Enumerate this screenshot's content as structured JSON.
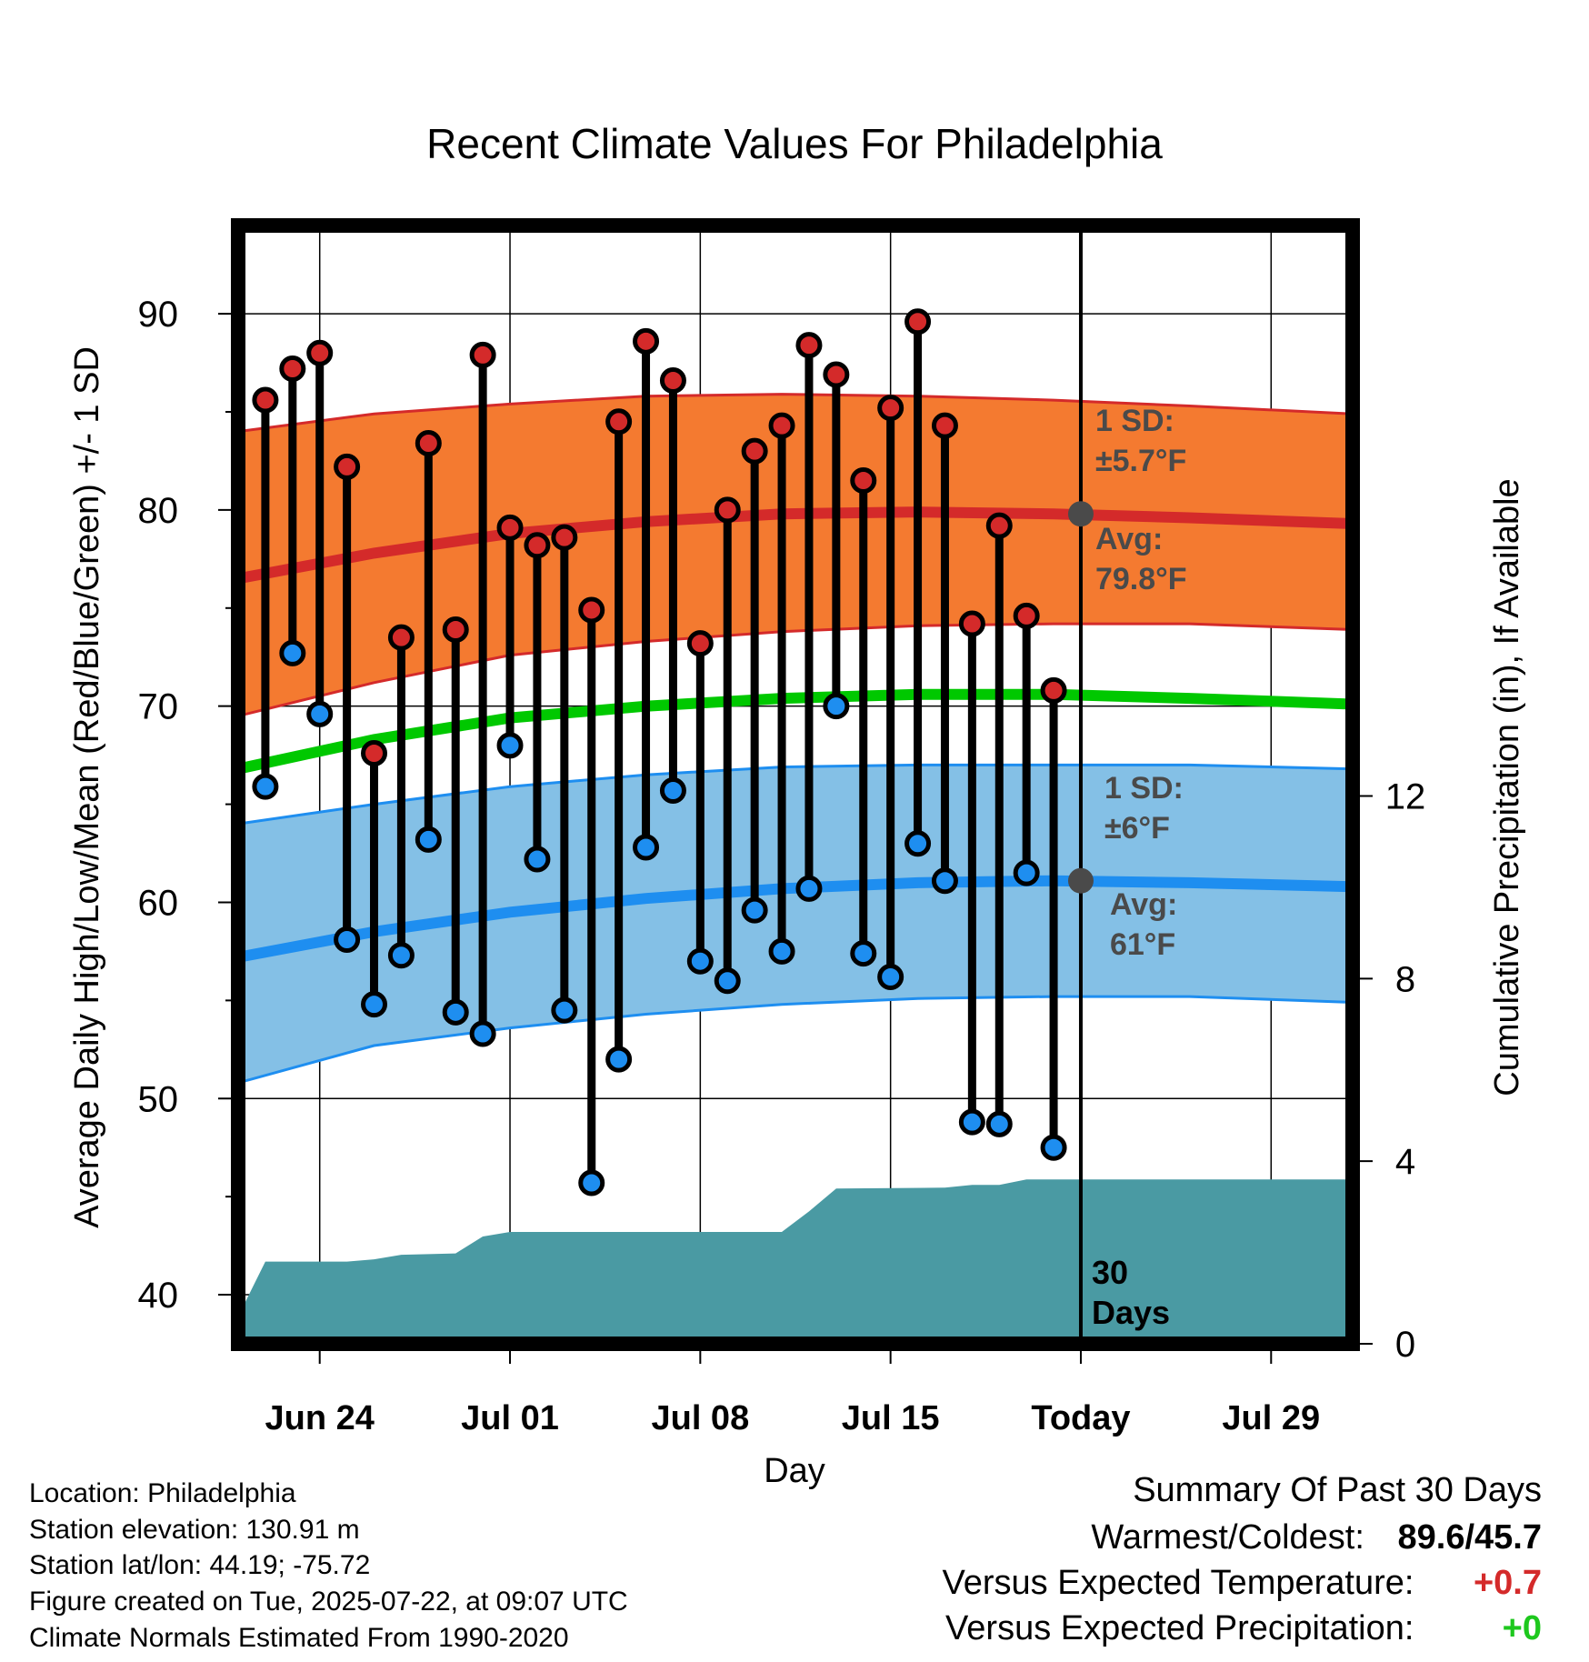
{
  "chart_data": {
    "type": "line",
    "title": "Recent Climate Values For Philadelphia",
    "xlabel": "Day",
    "ylabel": "Average Daily High/Low/Mean (Red/Blue/Green) +/- 1 SD",
    "y2label": "Cumulative Precipitation (in), If Available",
    "ylim": [
      37.5,
      94.5
    ],
    "y_ticks": [
      40,
      50,
      60,
      70,
      80,
      90
    ],
    "y2_ticks": [
      0,
      4,
      8,
      12
    ],
    "y2lim": [
      0,
      24.5
    ],
    "xlim": [
      "2025-06-21",
      "2025-08-01"
    ],
    "x_ticks": [
      {
        "date": "2025-06-24",
        "label": "Jun 24"
      },
      {
        "date": "2025-07-01",
        "label": "Jul 01"
      },
      {
        "date": "2025-07-08",
        "label": "Jul 08"
      },
      {
        "date": "2025-07-15",
        "label": "Jul 15"
      },
      {
        "date": "2025-07-22",
        "label": "Today"
      },
      {
        "date": "2025-07-29",
        "label": "Jul 29"
      }
    ],
    "today": "2025-07-22",
    "grid": true,
    "observations": {
      "dates": [
        "2025-06-22",
        "2025-06-23",
        "2025-06-24",
        "2025-06-25",
        "2025-06-26",
        "2025-06-27",
        "2025-06-28",
        "2025-06-29",
        "2025-06-30",
        "2025-07-01",
        "2025-07-02",
        "2025-07-03",
        "2025-07-04",
        "2025-07-05",
        "2025-07-06",
        "2025-07-07",
        "2025-07-08",
        "2025-07-09",
        "2025-07-10",
        "2025-07-11",
        "2025-07-12",
        "2025-07-13",
        "2025-07-14",
        "2025-07-15",
        "2025-07-16",
        "2025-07-17",
        "2025-07-18",
        "2025-07-19",
        "2025-07-20",
        "2025-07-21"
      ],
      "highs": [
        85.6,
        87.2,
        88.0,
        82.2,
        67.6,
        73.5,
        83.4,
        73.9,
        87.9,
        79.1,
        78.2,
        78.6,
        74.9,
        84.5,
        88.6,
        86.6,
        73.2,
        80.0,
        83.0,
        84.3,
        88.4,
        86.9,
        81.5,
        85.2,
        89.6,
        84.3,
        74.2,
        79.2,
        74.6,
        70.8
      ],
      "lows": [
        65.9,
        72.7,
        69.6,
        58.1,
        54.8,
        57.3,
        63.2,
        54.4,
        53.3,
        68.0,
        62.2,
        54.5,
        45.7,
        52.0,
        62.8,
        65.7,
        57.0,
        56.0,
        59.6,
        57.5,
        60.7,
        70.0,
        57.4,
        56.2,
        63.0,
        61.1,
        48.8,
        48.7,
        61.5,
        47.5
      ]
    },
    "normals": {
      "dates": [
        "2025-06-21",
        "2025-06-26",
        "2025-07-01",
        "2025-07-06",
        "2025-07-11",
        "2025-07-16",
        "2025-07-21",
        "2025-07-26",
        "2025-08-01"
      ],
      "high_avg": [
        76.5,
        77.8,
        78.8,
        79.4,
        79.8,
        79.9,
        79.8,
        79.6,
        79.3
      ],
      "mean_avg": [
        66.8,
        68.3,
        69.4,
        70.0,
        70.4,
        70.6,
        70.6,
        70.4,
        70.1
      ],
      "low_avg": [
        57.2,
        58.5,
        59.5,
        60.2,
        60.7,
        61.0,
        61.1,
        61.0,
        60.8
      ],
      "high_sd_upper": [
        84.0,
        84.9,
        85.4,
        85.8,
        85.9,
        85.8,
        85.6,
        85.3,
        84.9
      ],
      "high_sd_lower": [
        69.5,
        71.2,
        72.6,
        73.3,
        73.8,
        74.1,
        74.2,
        74.2,
        73.9
      ],
      "low_sd_upper": [
        64.0,
        65.0,
        65.9,
        66.5,
        66.9,
        67.0,
        67.0,
        67.0,
        66.8
      ],
      "low_sd_lower": [
        50.8,
        52.7,
        53.6,
        54.3,
        54.8,
        55.1,
        55.2,
        55.2,
        54.9
      ]
    },
    "precipitation": {
      "dates": [
        "2025-06-21",
        "2025-06-22",
        "2025-06-25",
        "2025-06-26",
        "2025-06-27",
        "2025-06-29",
        "2025-06-30",
        "2025-07-01",
        "2025-07-11",
        "2025-07-12",
        "2025-07-13",
        "2025-07-17",
        "2025-07-18",
        "2025-07-19",
        "2025-07-20",
        "2025-08-01"
      ],
      "cumulative": [
        0.6,
        1.8,
        1.8,
        1.85,
        1.95,
        1.98,
        2.35,
        2.45,
        2.45,
        2.9,
        3.4,
        3.42,
        3.48,
        3.48,
        3.6,
        3.6
      ]
    },
    "annotations": {
      "high_sd": {
        "line1": "1 SD:",
        "line2": "±5.7°F"
      },
      "high_avg": {
        "line1": "Avg:",
        "line2": "79.8°F"
      },
      "low_sd": {
        "line1": "1 SD:",
        "line2": "±6°F"
      },
      "low_avg": {
        "line1": "Avg:",
        "line2": "61°F"
      },
      "period": {
        "line1": "30",
        "line2": "Days"
      }
    },
    "colors": {
      "high_band": "#f47a30",
      "high_line": "#d42a2a",
      "mean_line": "#00c800",
      "low_band": "#84c0e6",
      "low_line": "#1e8ef0",
      "precip": "#4a9aa3",
      "high_dot": "#d42a2a",
      "low_dot": "#1e8ef0",
      "annotation": "#4a4a4a"
    }
  },
  "footer": {
    "location": "Location: Philadelphia",
    "elevation": "Station elevation: 130.91 m",
    "latlon": "Station lat/lon: 44.19; -75.72",
    "created": "Figure created on Tue, 2025-07-22, at 09:07 UTC",
    "normals": "Climate Normals Estimated From 1990-2020"
  },
  "summary": {
    "title": "Summary Of Past 30 Days",
    "warmest_label": "Warmest/Coldest:",
    "warmest_value": "89.6",
    "coldest_value": "45.7",
    "temp_label": "Versus Expected Temperature:",
    "temp_value": "+0.7",
    "temp_color": "#d42a2a",
    "precip_label": "Versus Expected Precipitation:",
    "precip_value": "+0",
    "precip_color": "#1ec81e"
  }
}
